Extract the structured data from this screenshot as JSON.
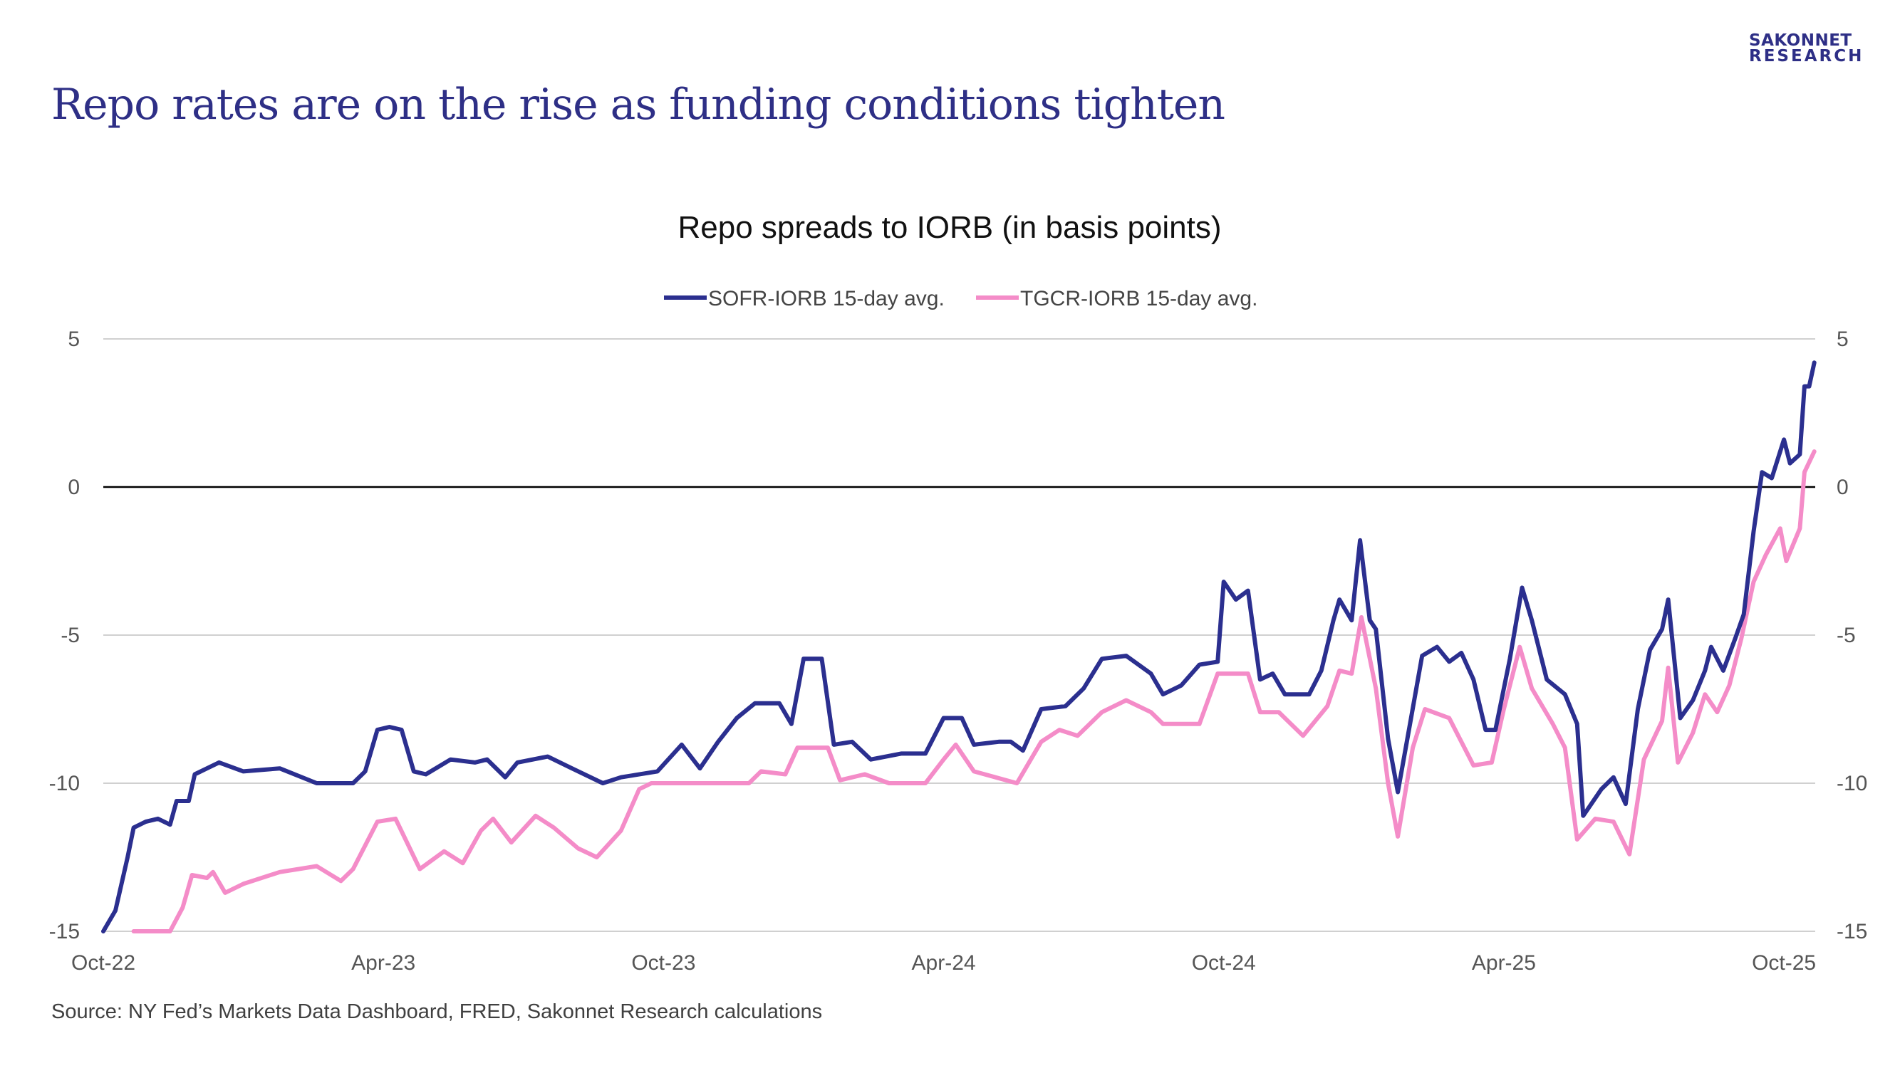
{
  "page": {
    "title": "Repo rates are on the rise as funding conditions tighten",
    "logo": {
      "line1": "SAKONNET",
      "line2": "RESEARCH"
    },
    "source": "Source: NY Fed’s Markets Data Dashboard, FRED, Sakonnet Research calculations"
  },
  "colors": {
    "title": "#2e2f86",
    "sofr": "#2b2f8f",
    "tgcr": "#f48cc8",
    "grid": "#d0d0d0",
    "zero": "#000000"
  },
  "chart_data": {
    "type": "line",
    "title": "Repo spreads to IORB (in basis points)",
    "xlabel": "",
    "ylabel": "",
    "x_unit_months_since": "Oct-22",
    "xlim": [
      0,
      36.65
    ],
    "ylim": [
      -15,
      5
    ],
    "yticks": [
      5,
      0,
      -5,
      -10,
      -15
    ],
    "ytick_labels": [
      "5",
      "0",
      "-5",
      "-10",
      "-15"
    ],
    "xticks": [
      0,
      6,
      12,
      18,
      24,
      30,
      36
    ],
    "xtick_labels": [
      "Oct-22",
      "Apr-23",
      "Oct-23",
      "Apr-24",
      "Oct-24",
      "Apr-25",
      "Oct-25"
    ],
    "grid": true,
    "legend_position": "top-center",
    "series": [
      {
        "name": "SOFR-IORB 15-day avg.",
        "points": [
          [
            0,
            -15
          ],
          [
            0.26,
            -14.3
          ],
          [
            0.52,
            -12.5
          ],
          [
            0.65,
            -11.5
          ],
          [
            0.91,
            -11.3
          ],
          [
            1.17,
            -11.2
          ],
          [
            1.43,
            -11.4
          ],
          [
            1.57,
            -10.6
          ],
          [
            1.83,
            -10.6
          ],
          [
            1.96,
            -9.7
          ],
          [
            2.22,
            -9.5
          ],
          [
            2.48,
            -9.3
          ],
          [
            3.0,
            -9.6
          ],
          [
            3.78,
            -9.5
          ],
          [
            4.57,
            -10
          ],
          [
            5.35,
            -10
          ],
          [
            5.61,
            -9.6
          ],
          [
            5.87,
            -8.2
          ],
          [
            6.13,
            -8.1
          ],
          [
            6.39,
            -8.2
          ],
          [
            6.65,
            -9.6
          ],
          [
            6.91,
            -9.7
          ],
          [
            7.44,
            -9.2
          ],
          [
            7.96,
            -9.3
          ],
          [
            8.22,
            -9.2
          ],
          [
            8.61,
            -9.8
          ],
          [
            8.87,
            -9.3
          ],
          [
            9.52,
            -9.1
          ],
          [
            10.04,
            -9.5
          ],
          [
            10.7,
            -10
          ],
          [
            11.09,
            -9.8
          ],
          [
            11.87,
            -9.6
          ],
          [
            12.39,
            -8.7
          ],
          [
            12.78,
            -9.5
          ],
          [
            13.17,
            -8.6
          ],
          [
            13.57,
            -7.8
          ],
          [
            13.96,
            -7.3
          ],
          [
            14.48,
            -7.3
          ],
          [
            14.74,
            -8
          ],
          [
            15.0,
            -5.8
          ],
          [
            15.39,
            -5.8
          ],
          [
            15.65,
            -8.7
          ],
          [
            16.04,
            -8.6
          ],
          [
            16.44,
            -9.2
          ],
          [
            17.09,
            -9
          ],
          [
            17.61,
            -9
          ],
          [
            18.0,
            -7.8
          ],
          [
            18.39,
            -7.8
          ],
          [
            18.65,
            -8.7
          ],
          [
            19.18,
            -8.6
          ],
          [
            19.44,
            -8.6
          ],
          [
            19.7,
            -8.9
          ],
          [
            20.09,
            -7.5
          ],
          [
            20.61,
            -7.4
          ],
          [
            21.0,
            -6.8
          ],
          [
            21.39,
            -5.8
          ],
          [
            21.91,
            -5.7
          ],
          [
            22.44,
            -6.3
          ],
          [
            22.7,
            -7.0
          ],
          [
            23.09,
            -6.7
          ],
          [
            23.48,
            -6
          ],
          [
            23.87,
            -5.9
          ],
          [
            24.0,
            -3.2
          ],
          [
            24.26,
            -3.8
          ],
          [
            24.52,
            -3.5
          ],
          [
            24.78,
            -6.5
          ],
          [
            25.05,
            -6.3
          ],
          [
            25.31,
            -7
          ],
          [
            25.83,
            -7
          ],
          [
            26.09,
            -6.2
          ],
          [
            26.35,
            -4.5
          ],
          [
            26.48,
            -3.8
          ],
          [
            26.74,
            -4.5
          ],
          [
            26.92,
            -1.8
          ],
          [
            27.13,
            -4.5
          ],
          [
            27.26,
            -4.8
          ],
          [
            27.52,
            -8.5
          ],
          [
            27.73,
            -10.3
          ],
          [
            27.99,
            -8
          ],
          [
            28.25,
            -5.7
          ],
          [
            28.57,
            -5.4
          ],
          [
            28.83,
            -5.9
          ],
          [
            29.09,
            -5.6
          ],
          [
            29.35,
            -6.5
          ],
          [
            29.61,
            -8.2
          ],
          [
            29.82,
            -8.2
          ],
          [
            30.13,
            -5.8
          ],
          [
            30.39,
            -3.4
          ],
          [
            30.6,
            -4.5
          ],
          [
            30.92,
            -6.5
          ],
          [
            31.31,
            -7
          ],
          [
            31.57,
            -8
          ],
          [
            31.7,
            -11.1
          ],
          [
            32.09,
            -10.2
          ],
          [
            32.35,
            -9.8
          ],
          [
            32.61,
            -10.7
          ],
          [
            32.87,
            -7.5
          ],
          [
            33.13,
            -5.5
          ],
          [
            33.39,
            -4.8
          ],
          [
            33.52,
            -3.8
          ],
          [
            33.78,
            -7.8
          ],
          [
            34.05,
            -7.2
          ],
          [
            34.31,
            -6.2
          ],
          [
            34.44,
            -5.4
          ],
          [
            34.7,
            -6.2
          ],
          [
            34.96,
            -5.1
          ],
          [
            35.14,
            -4.3
          ],
          [
            35.35,
            -1.5
          ],
          [
            35.53,
            0.5
          ],
          [
            35.74,
            0.3
          ],
          [
            36.0,
            1.6
          ],
          [
            36.13,
            0.8
          ],
          [
            36.34,
            1.1
          ],
          [
            36.44,
            3.4
          ],
          [
            36.54,
            3.4
          ],
          [
            36.65,
            4.2
          ]
        ]
      },
      {
        "name": "TGCR-IORB 15-day avg.",
        "points": [
          [
            0.65,
            -15
          ],
          [
            1.43,
            -15
          ],
          [
            1.7,
            -14.2
          ],
          [
            1.9,
            -13.1
          ],
          [
            2.22,
            -13.2
          ],
          [
            2.35,
            -13.0
          ],
          [
            2.61,
            -13.7
          ],
          [
            3.0,
            -13.4
          ],
          [
            3.78,
            -13.0
          ],
          [
            4.57,
            -12.8
          ],
          [
            5.09,
            -13.3
          ],
          [
            5.35,
            -12.9
          ],
          [
            5.87,
            -11.3
          ],
          [
            6.26,
            -11.2
          ],
          [
            6.78,
            -12.9
          ],
          [
            7.3,
            -12.3
          ],
          [
            7.7,
            -12.7
          ],
          [
            8.09,
            -11.6
          ],
          [
            8.35,
            -11.2
          ],
          [
            8.74,
            -12.0
          ],
          [
            9.26,
            -11.1
          ],
          [
            9.65,
            -11.5
          ],
          [
            10.17,
            -12.2
          ],
          [
            10.57,
            -12.5
          ],
          [
            11.09,
            -11.6
          ],
          [
            11.48,
            -10.2
          ],
          [
            11.74,
            -10
          ],
          [
            13.83,
            -10
          ],
          [
            14.09,
            -9.6
          ],
          [
            14.61,
            -9.7
          ],
          [
            14.87,
            -8.8
          ],
          [
            15.52,
            -8.8
          ],
          [
            15.78,
            -9.9
          ],
          [
            16.31,
            -9.7
          ],
          [
            16.83,
            -10
          ],
          [
            17.61,
            -10
          ],
          [
            18.0,
            -9.2
          ],
          [
            18.26,
            -8.7
          ],
          [
            18.65,
            -9.6
          ],
          [
            19.57,
            -10
          ],
          [
            20.09,
            -8.6
          ],
          [
            20.48,
            -8.2
          ],
          [
            20.87,
            -8.4
          ],
          [
            21.39,
            -7.6
          ],
          [
            21.91,
            -7.2
          ],
          [
            22.44,
            -7.6
          ],
          [
            22.7,
            -8
          ],
          [
            23.48,
            -8
          ],
          [
            23.87,
            -6.3
          ],
          [
            24.52,
            -6.3
          ],
          [
            24.78,
            -7.6
          ],
          [
            25.18,
            -7.6
          ],
          [
            25.7,
            -8.4
          ],
          [
            26.22,
            -7.4
          ],
          [
            26.48,
            -6.2
          ],
          [
            26.74,
            -6.3
          ],
          [
            26.95,
            -4.4
          ],
          [
            27.26,
            -6.8
          ],
          [
            27.52,
            -10
          ],
          [
            27.73,
            -11.8
          ],
          [
            28.05,
            -8.8
          ],
          [
            28.31,
            -7.5
          ],
          [
            28.83,
            -7.8
          ],
          [
            29.35,
            -9.4
          ],
          [
            29.74,
            -9.3
          ],
          [
            30.0,
            -7.5
          ],
          [
            30.34,
            -5.4
          ],
          [
            30.6,
            -6.8
          ],
          [
            31.05,
            -8.0
          ],
          [
            31.31,
            -8.8
          ],
          [
            31.57,
            -11.9
          ],
          [
            31.96,
            -11.2
          ],
          [
            32.35,
            -11.3
          ],
          [
            32.69,
            -12.4
          ],
          [
            33.0,
            -9.2
          ],
          [
            33.39,
            -7.9
          ],
          [
            33.52,
            -6.1
          ],
          [
            33.73,
            -9.3
          ],
          [
            34.05,
            -8.3
          ],
          [
            34.31,
            -7.0
          ],
          [
            34.57,
            -7.6
          ],
          [
            34.83,
            -6.7
          ],
          [
            35.09,
            -5.1
          ],
          [
            35.35,
            -3.2
          ],
          [
            35.61,
            -2.3
          ],
          [
            35.92,
            -1.4
          ],
          [
            36.05,
            -2.5
          ],
          [
            36.34,
            -1.4
          ],
          [
            36.44,
            0.5
          ],
          [
            36.65,
            1.2
          ]
        ]
      }
    ]
  }
}
